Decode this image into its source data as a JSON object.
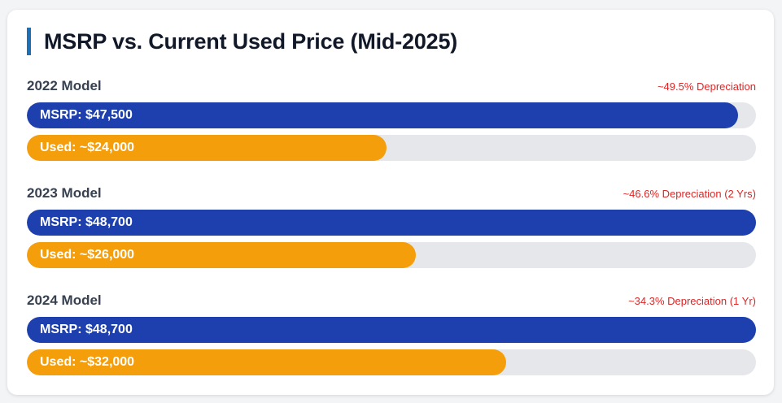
{
  "chart_data": {
    "type": "bar",
    "title": "MSRP vs. Current Used Price (Mid-2025)",
    "categories": [
      "2022 Model",
      "2023 Model",
      "2024 Model"
    ],
    "series": [
      {
        "name": "MSRP",
        "values": [
          47500,
          48700,
          48700
        ]
      },
      {
        "name": "Used",
        "values": [
          24000,
          26000,
          32000
        ]
      }
    ],
    "groups": [
      {
        "label": "2022 Model",
        "note": "~49.5% Depreciation",
        "msrp_label": "MSRP: $47,500",
        "used_label": "Used: ~$24,000"
      },
      {
        "label": "2023 Model",
        "note": "~46.6% Depreciation (2 Yrs)",
        "msrp_label": "MSRP: $48,700",
        "used_label": "Used: ~$26,000"
      },
      {
        "label": "2024 Model",
        "note": "~34.3% Depreciation (1 Yr)",
        "msrp_label": "MSRP: $48,700",
        "used_label": "Used: ~$32,000"
      }
    ],
    "xlim": [
      0,
      48700
    ],
    "colors": {
      "msrp": "#1e40af",
      "used": "#f59e0b",
      "track": "#e5e7eb",
      "note": "#dc2626",
      "title_accent": "#1f6fb4"
    }
  }
}
